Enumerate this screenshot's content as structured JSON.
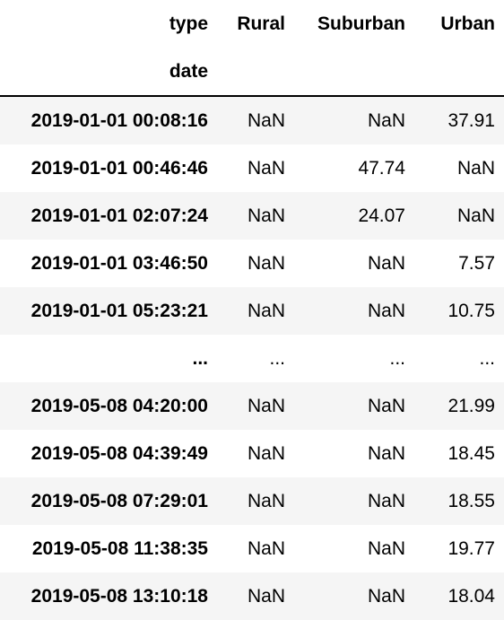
{
  "table": {
    "columns_level_name": "type",
    "index_name": "date",
    "columns": [
      "Rural",
      "Suburban",
      "Urban"
    ],
    "rows": [
      {
        "index": "2019-01-01 00:08:16",
        "values": [
          "NaN",
          "NaN",
          "37.91"
        ]
      },
      {
        "index": "2019-01-01 00:46:46",
        "values": [
          "NaN",
          "47.74",
          "NaN"
        ]
      },
      {
        "index": "2019-01-01 02:07:24",
        "values": [
          "NaN",
          "24.07",
          "NaN"
        ]
      },
      {
        "index": "2019-01-01 03:46:50",
        "values": [
          "NaN",
          "NaN",
          "7.57"
        ]
      },
      {
        "index": "2019-01-01 05:23:21",
        "values": [
          "NaN",
          "NaN",
          "10.75"
        ]
      },
      {
        "index": "...",
        "values": [
          "...",
          "...",
          "..."
        ],
        "ellipsis": true
      },
      {
        "index": "2019-05-08 04:20:00",
        "values": [
          "NaN",
          "NaN",
          "21.99"
        ]
      },
      {
        "index": "2019-05-08 04:39:49",
        "values": [
          "NaN",
          "NaN",
          "18.45"
        ]
      },
      {
        "index": "2019-05-08 07:29:01",
        "values": [
          "NaN",
          "NaN",
          "18.55"
        ]
      },
      {
        "index": "2019-05-08 11:38:35",
        "values": [
          "NaN",
          "NaN",
          "19.77"
        ]
      },
      {
        "index": "2019-05-08 13:10:18",
        "values": [
          "NaN",
          "NaN",
          "18.04"
        ]
      }
    ]
  }
}
